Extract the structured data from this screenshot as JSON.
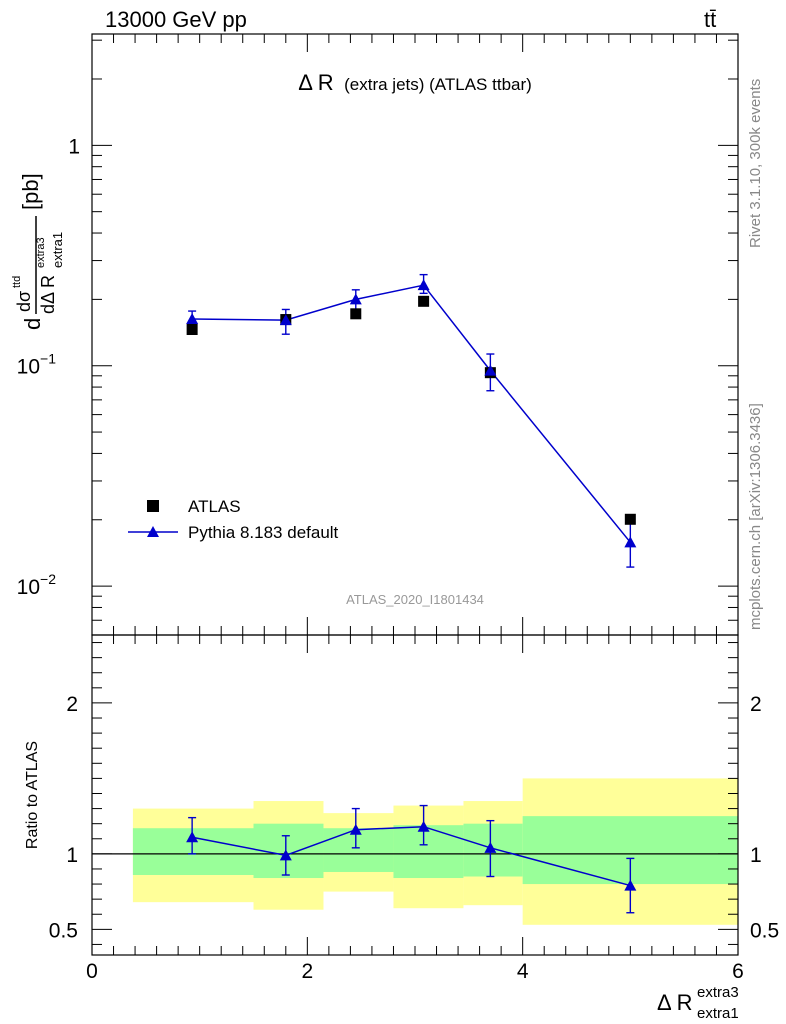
{
  "header": {
    "energy_label": "13000 GeV pp",
    "process_label": "tt̄"
  },
  "side_text": {
    "rivet_label": "Rivet 3.1.10,  300k events",
    "mcplots_label": "mcplots.cern.ch [arXiv:1306.3436]"
  },
  "chart_data": [
    {
      "type": "scatter",
      "panel": "main",
      "title_main": "Δ R",
      "title_small": "(extra jets) (ATLAS ttbar)",
      "ylabel": "dσ^ttd / dΔ R extra1 extra3 [pb]",
      "yscale": "log",
      "ylim": [
        0.006,
        3.2
      ],
      "xlim": [
        0,
        6
      ],
      "yticks": [
        {
          "value": 1,
          "label": "1"
        },
        {
          "value": 0.1,
          "label": "10",
          "exp": "−1"
        },
        {
          "value": 0.01,
          "label": "10",
          "exp": "−2"
        }
      ],
      "watermark": "ATLAS_2020_I1801434",
      "legend_position": "lower-left",
      "series": [
        {
          "name": "ATLAS",
          "marker": "square",
          "color": "#000000",
          "x": [
            0.93,
            1.8,
            2.45,
            3.08,
            3.7,
            5.0
          ],
          "y": [
            0.146,
            0.162,
            0.172,
            0.196,
            0.093,
            0.0201
          ]
        },
        {
          "name": "Pythia 8.183 default",
          "marker": "triangle",
          "color": "#0000cc",
          "x": [
            0.93,
            1.8,
            2.45,
            3.08,
            3.7,
            5.0
          ],
          "y": [
            0.163,
            0.161,
            0.2,
            0.232,
            0.095,
            0.0158
          ],
          "err_low": [
            0.148,
            0.139,
            0.18,
            0.213,
            0.077,
            0.0122
          ],
          "err_high": [
            0.177,
            0.18,
            0.221,
            0.259,
            0.113,
            0.0193
          ]
        }
      ]
    },
    {
      "type": "scatter",
      "panel": "ratio",
      "ylabel": "Ratio to ATLAS",
      "xlabel": "Δ R",
      "xlabel_sup": "extra3",
      "xlabel_sub": "extra1",
      "ylim": [
        0.33,
        2.45
      ],
      "xlim": [
        0,
        6
      ],
      "yticks": [
        {
          "value": 0.5,
          "label": "0.5"
        },
        {
          "value": 1,
          "label": "1"
        },
        {
          "value": 2,
          "label": "2"
        }
      ],
      "xticks": [
        {
          "value": 0,
          "label": "0"
        },
        {
          "value": 2,
          "label": "2"
        },
        {
          "value": 4,
          "label": "4"
        },
        {
          "value": 6,
          "label": "6"
        }
      ],
      "bands": [
        {
          "x0": 0.38,
          "x1": 1.5,
          "yellow": [
            0.68,
            1.3
          ],
          "green": [
            0.86,
            1.17
          ]
        },
        {
          "x0": 1.5,
          "x1": 2.15,
          "yellow": [
            0.63,
            1.35
          ],
          "green": [
            0.84,
            1.2
          ]
        },
        {
          "x0": 2.15,
          "x1": 2.8,
          "yellow": [
            0.75,
            1.27
          ],
          "green": [
            0.88,
            1.17
          ]
        },
        {
          "x0": 2.8,
          "x1": 3.45,
          "yellow": [
            0.64,
            1.32
          ],
          "green": [
            0.84,
            1.19
          ]
        },
        {
          "x0": 3.45,
          "x1": 4.0,
          "yellow": [
            0.66,
            1.35
          ],
          "green": [
            0.85,
            1.2
          ]
        },
        {
          "x0": 4.0,
          "x1": 6.0,
          "yellow": [
            0.53,
            1.5
          ],
          "green": [
            0.8,
            1.25
          ]
        }
      ],
      "series": [
        {
          "name": "Pythia 8.183 default",
          "color": "#0000cc",
          "x": [
            0.93,
            1.8,
            2.45,
            3.08,
            3.7,
            5.0
          ],
          "y": [
            1.11,
            0.99,
            1.16,
            1.18,
            1.04,
            0.79
          ],
          "err_low": [
            1.0,
            0.86,
            1.04,
            1.06,
            0.85,
            0.61
          ],
          "err_high": [
            1.24,
            1.12,
            1.3,
            1.32,
            1.22,
            0.97
          ]
        }
      ],
      "reference_line": 1
    }
  ]
}
